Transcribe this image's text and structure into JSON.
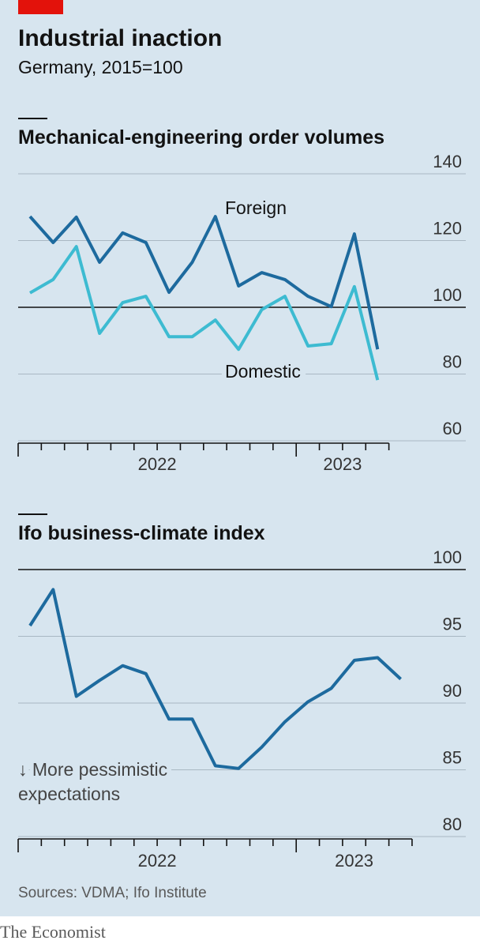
{
  "header": {
    "title": "Industrial inaction",
    "subtitle": "Germany, 2015=100"
  },
  "chart_data": [
    {
      "type": "line",
      "title": "Mechanical-engineering order volumes",
      "x_labels": [
        "2022",
        "2023"
      ],
      "series": [
        {
          "name": "Foreign",
          "color": "#1d6a9e",
          "values": [
            127.2,
            119.4,
            127,
            113.5,
            122.3,
            119.4,
            104.5,
            113.5,
            127.2,
            106.4,
            110.4,
            108.3,
            103.3,
            100.2,
            122,
            87.4
          ]
        },
        {
          "name": "Domestic",
          "color": "#3dbbd1",
          "values": [
            104.3,
            108.3,
            118.2,
            92.2,
            101.4,
            103.3,
            91.2,
            91.2,
            96.2,
            87.4,
            99.3,
            103.3,
            88.4,
            89.1,
            106.2,
            78.2
          ]
        }
      ],
      "ylim": [
        60,
        140
      ],
      "yticks": [
        60,
        80,
        100,
        120,
        140
      ],
      "baseline": 100,
      "grid": true
    },
    {
      "type": "line",
      "title": "Ifo business-climate index",
      "x_labels": [
        "2022",
        "2023"
      ],
      "series": [
        {
          "color": "#1d6a9e",
          "values": [
            95.8,
            98.5,
            90.5,
            91.7,
            92.8,
            92.2,
            88.8,
            88.8,
            85.3,
            85.1,
            86.7,
            88.6,
            90.1,
            91.1,
            93.2,
            93.4,
            91.8
          ]
        }
      ],
      "annotation": [
        "↓ More pessimistic",
        "expectations"
      ],
      "ylim": [
        80,
        100
      ],
      "yticks": [
        80,
        85,
        90,
        95,
        100
      ],
      "baseline": 100,
      "grid": true
    }
  ],
  "source": "Sources: VDMA; Ifo Institute",
  "brand": "The Economist"
}
